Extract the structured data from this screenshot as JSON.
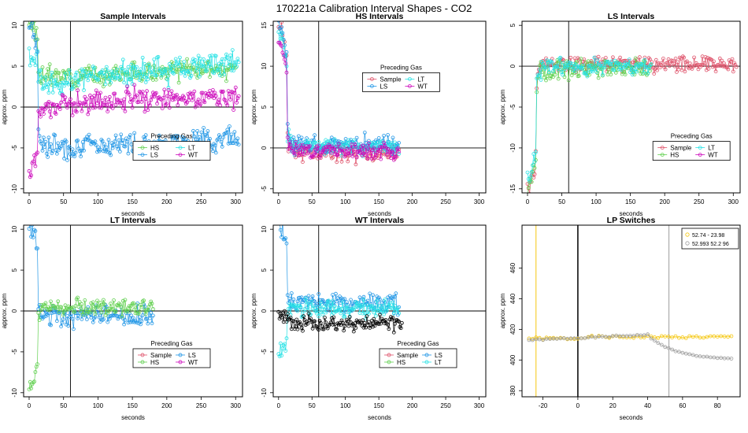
{
  "figure": {
    "title": "170221a   Calibration Interval Shapes - CO2"
  },
  "colors": {
    "Sample": "#DF536B",
    "HS": "#61D04F",
    "LS": "#2297E6",
    "LT": "#28E2E5",
    "WT": "#CD0BBC",
    "LP1": "#F5C710",
    "LP2": "#9E9E9E",
    "black": "#000000"
  },
  "chart_data": [
    {
      "id": "sample",
      "type": "scatter",
      "title": "Sample Intervals",
      "xlabel": "seconds",
      "ylabel": "approx. ppm",
      "xlim": [
        -8,
        310
      ],
      "ylim": [
        -10.5,
        10.5
      ],
      "xticks": [
        0,
        50,
        100,
        150,
        200,
        250,
        300
      ],
      "yticks": [
        -10,
        -5,
        0,
        5,
        10
      ],
      "vline": 60,
      "hline": 0,
      "legend": {
        "title": "Preceding Gas",
        "cols": 2,
        "entries": [
          "HS",
          "LT",
          "LS",
          "WT"
        ],
        "pos": [
          0.5,
          0.7
        ]
      },
      "series": [
        {
          "name": "HS",
          "x_max": 300,
          "start": 10,
          "decay": 4,
          "level": 3.8,
          "slope": 0.004,
          "noise": 1.0,
          "seed": 3
        },
        {
          "name": "LT",
          "x_max": 305,
          "start": 6,
          "decay": 4,
          "level": 3.2,
          "slope": 0.01,
          "noise": 1.4,
          "seed": 5
        },
        {
          "name": "LS",
          "x_max": 305,
          "start": 10.5,
          "decay": 5,
          "level": -4.8,
          "slope": 0.004,
          "noise": 1.2,
          "seed": 7
        },
        {
          "name": "WT",
          "x_max": 305,
          "start": -8,
          "decay": 5,
          "level": 0.4,
          "slope": 0.004,
          "noise": 1.3,
          "seed": 9
        }
      ]
    },
    {
      "id": "hs",
      "type": "scatter",
      "title": "HS Intervals",
      "xlabel": "seconds",
      "ylabel": "approx. ppm",
      "xlim": [
        -8,
        310
      ],
      "ylim": [
        -5.5,
        15.5
      ],
      "xticks": [
        0,
        50,
        100,
        150,
        200,
        250,
        300
      ],
      "yticks": [
        -5,
        0,
        5,
        10,
        15
      ],
      "vline": 60,
      "hline": 0,
      "legend": {
        "title": "Preceding Gas",
        "cols": 2,
        "entries": [
          "Sample",
          "LT",
          "LS",
          "WT"
        ],
        "pos": [
          0.42,
          0.3
        ]
      },
      "series": [
        {
          "name": "Sample",
          "x_max": 180,
          "start": 15,
          "decay": 3,
          "level": -0.6,
          "slope": 0,
          "noise": 0.9,
          "seed": 11
        },
        {
          "name": "LS",
          "x_max": 180,
          "start": 15,
          "decay": 3,
          "level": 0.4,
          "slope": 0,
          "noise": 1.0,
          "seed": 13
        },
        {
          "name": "LT",
          "x_max": 180,
          "start": 14,
          "decay": 3,
          "level": 0.2,
          "slope": 0,
          "noise": 0.8,
          "seed": 15
        },
        {
          "name": "WT",
          "x_max": 180,
          "start": 13,
          "decay": 3,
          "level": -0.3,
          "slope": 0,
          "noise": 0.8,
          "seed": 17
        }
      ]
    },
    {
      "id": "ls",
      "type": "scatter",
      "title": "LS Intervals",
      "xlabel": "seconds",
      "ylabel": "approx. ppm",
      "xlim": [
        -8,
        310
      ],
      "ylim": [
        -15.5,
        5.5
      ],
      "xticks": [
        0,
        50,
        100,
        150,
        200,
        250,
        300
      ],
      "yticks": [
        -15,
        -10,
        -5,
        0,
        5
      ],
      "vline": 60,
      "hline": 0,
      "legend": {
        "title": "Preceding Gas",
        "cols": 3,
        "entries": [
          "Sample",
          "LT",
          "HS",
          "WT"
        ],
        "pos": [
          0.6,
          0.7
        ]
      },
      "series": [
        {
          "name": "Sample",
          "x_max": 305,
          "start": -15,
          "decay": 4,
          "level": 0.3,
          "slope": 0,
          "noise": 0.9,
          "seed": 19
        },
        {
          "name": "HS",
          "x_max": 180,
          "start": -15,
          "decay": 4,
          "level": -0.3,
          "slope": 0,
          "noise": 1.0,
          "seed": 21
        },
        {
          "name": "LT",
          "x_max": 180,
          "start": -14,
          "decay": 4,
          "level": 0.0,
          "slope": 0,
          "noise": 0.9,
          "seed": 23
        }
      ]
    },
    {
      "id": "lt",
      "type": "scatter",
      "title": "LT Intervals",
      "xlabel": "seconds",
      "ylabel": "approx. ppm",
      "xlim": [
        -8,
        310
      ],
      "ylim": [
        -10.5,
        10.5
      ],
      "xticks": [
        0,
        50,
        100,
        150,
        200,
        250,
        300
      ],
      "yticks": [
        -10,
        -5,
        0,
        5,
        10
      ],
      "vline": 60,
      "hline": 0,
      "legend": {
        "title": "Preceding Gas",
        "cols": 2,
        "entries": [
          "Sample",
          "LS",
          "HS",
          "WT"
        ],
        "pos": [
          0.5,
          0.72
        ]
      },
      "series": [
        {
          "name": "LS",
          "x_max": 180,
          "start": 10.5,
          "decay": 4,
          "level": -0.6,
          "slope": 0,
          "noise": 1.1,
          "seed": 25
        },
        {
          "name": "HS",
          "x_max": 180,
          "start": -9,
          "decay": 4,
          "level": 0.4,
          "slope": 0,
          "noise": 0.8,
          "seed": 27
        }
      ]
    },
    {
      "id": "wt",
      "type": "scatter",
      "title": "WT Intervals",
      "xlabel": "seconds",
      "ylabel": "approx. ppm",
      "xlim": [
        -8,
        310
      ],
      "ylim": [
        -10.5,
        10.5
      ],
      "xticks": [
        0,
        50,
        100,
        150,
        200,
        250,
        300
      ],
      "yticks": [
        -10,
        -5,
        0,
        5,
        10
      ],
      "vline": 60,
      "hline": 0,
      "legend": {
        "title": "Preceding Gas",
        "cols": 2,
        "entries": [
          "Sample",
          "LS",
          "HS",
          "LT"
        ],
        "pos": [
          0.5,
          0.72
        ]
      },
      "series": [
        {
          "name": "LS",
          "x_max": 180,
          "start": 10.5,
          "decay": 4,
          "level": 0.9,
          "slope": 0,
          "noise": 1.0,
          "seed": 29
        },
        {
          "name": "LT",
          "x_max": 180,
          "start": -5,
          "decay": 3,
          "level": 0.3,
          "slope": 0,
          "noise": 0.9,
          "seed": 31
        },
        {
          "name": "black",
          "x_max": 185,
          "start": -0.5,
          "decay": 3,
          "level": -1.5,
          "slope": 0,
          "noise": 0.8,
          "seed": 33
        }
      ]
    },
    {
      "id": "lp",
      "type": "scatter",
      "title": "LP Switches",
      "xlabel": "seconds",
      "ylabel": "approx. ppm",
      "xlim": [
        -32,
        93
      ],
      "ylim": [
        376,
        488
      ],
      "xticks": [
        -20,
        0,
        20,
        40,
        60,
        80
      ],
      "yticks": [
        380,
        400,
        420,
        440,
        460
      ],
      "vlines": [
        {
          "x": -23.98,
          "color": "LP1",
          "w": 1
        },
        {
          "x": 0,
          "color": "black",
          "w": 1.5
        },
        {
          "x": 52.2,
          "color": "LP2",
          "w": 1
        }
      ],
      "legend": {
        "title": "",
        "cols": 1,
        "entries": [
          "52.74 - 23.98",
          "52.993 52.2 96"
        ],
        "colors": [
          "LP1",
          "LP2"
        ]
      },
      "series": [
        {
          "name": "LP1",
          "kind": "lp1",
          "x_min": -28,
          "x_max": 88,
          "step": 2
        },
        {
          "name": "LP2",
          "kind": "lp2",
          "x_min": -28,
          "x_max": 88,
          "step": 2
        }
      ]
    }
  ]
}
